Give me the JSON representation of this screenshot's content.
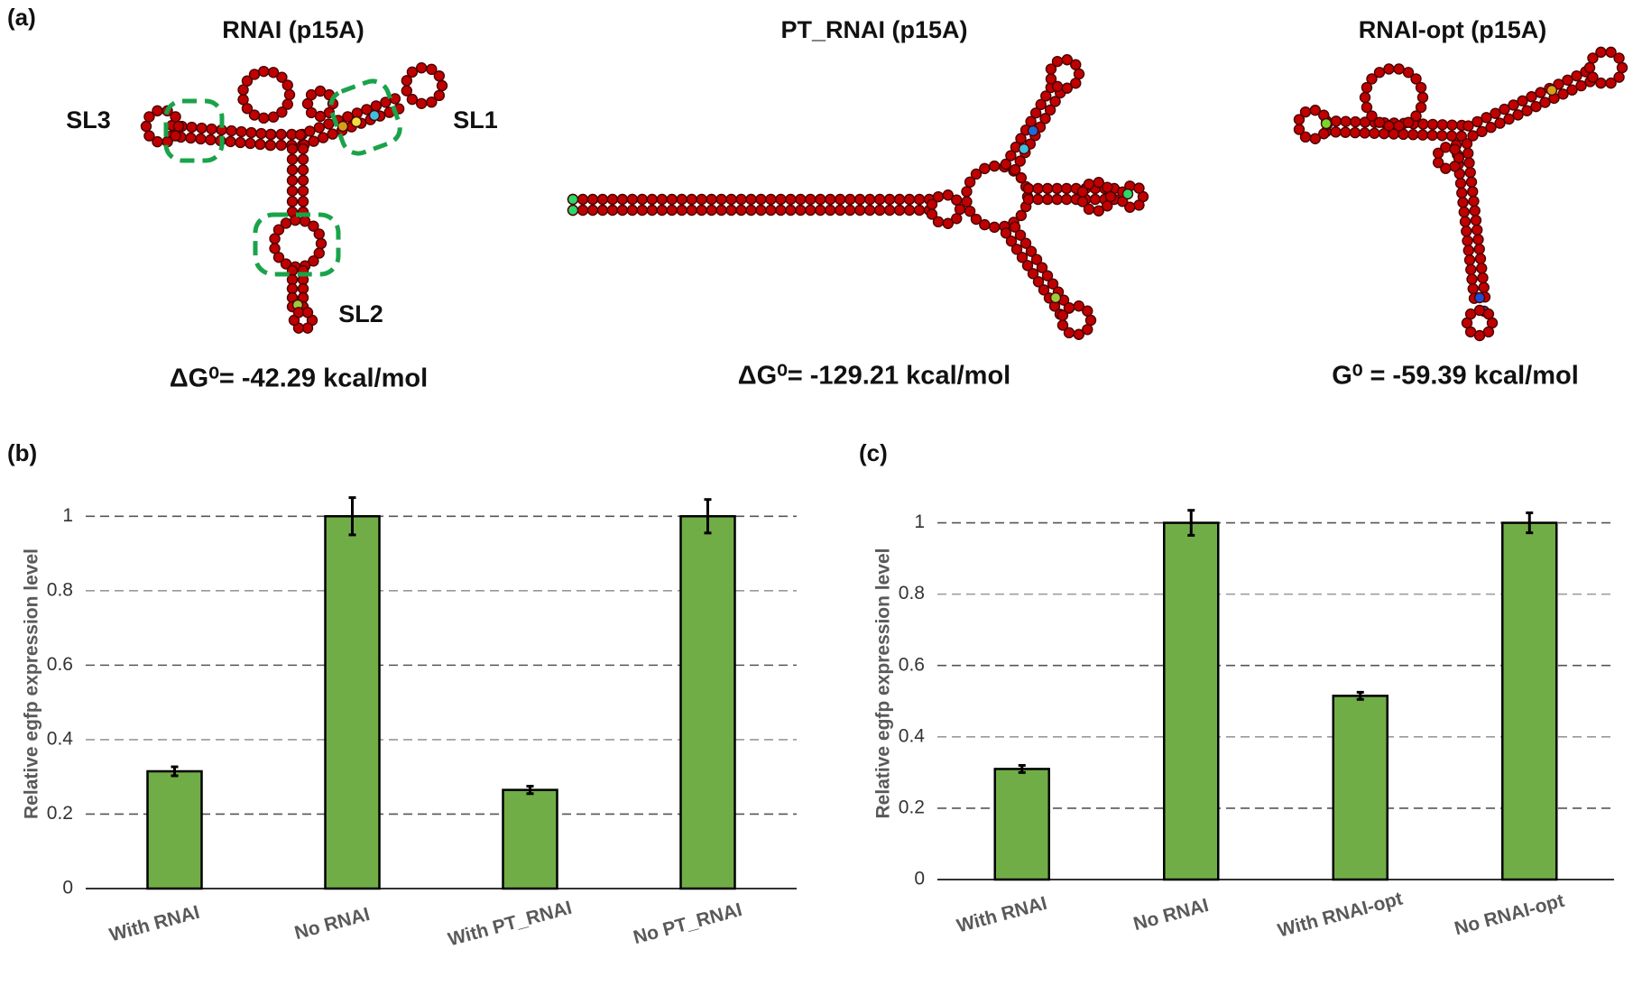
{
  "panel_a": {
    "label": "(a)",
    "structures": [
      {
        "title": "RNAI (p15A)",
        "energy": "ΔG⁰= -42.29 kcal/mol",
        "stem_labels": [
          "SL3",
          "SL1",
          "SL2"
        ]
      },
      {
        "title": "PT_RNAI (p15A)",
        "energy": "ΔG⁰= -129.21 kcal/mol"
      },
      {
        "title": "RNAI-opt (p15A)",
        "energy": "G⁰ = -59.39 kcal/mol"
      }
    ]
  },
  "chart_data": [
    {
      "type": "bar",
      "label": "(b)",
      "y_label": "Relative egfp expression level",
      "categories": [
        "With RNAI",
        "No RNAI",
        "With PT_RNAI",
        "No PT_RNAI"
      ],
      "values": [
        0.315,
        1.0,
        0.265,
        1.0
      ],
      "errors": [
        0.012,
        0.05,
        0.01,
        0.045
      ],
      "color": "#70ad47",
      "ylim": [
        0,
        1.1
      ],
      "yticks": [
        0,
        0.2,
        0.4,
        0.6,
        0.8,
        1
      ],
      "grid": true
    },
    {
      "type": "bar",
      "label": "(c)",
      "y_label": "Relative egfp expression level",
      "categories": [
        "With RNAI",
        "No RNAI",
        "With RNAI-opt",
        "No RNAI-opt"
      ],
      "values": [
        0.31,
        1.0,
        0.515,
        1.0
      ],
      "errors": [
        0.01,
        0.035,
        0.01,
        0.028
      ],
      "color": "#70ad47",
      "ylim": [
        0,
        1.1
      ],
      "yticks": [
        0,
        0.2,
        0.4,
        0.6,
        0.8,
        1
      ],
      "grid": true
    }
  ]
}
